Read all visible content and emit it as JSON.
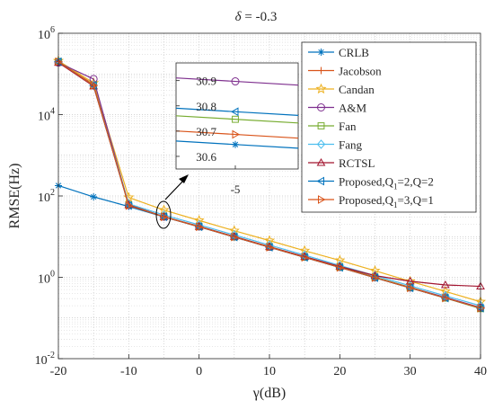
{
  "chart_data": {
    "type": "line",
    "title": "δ = -0.3",
    "xlabel": "γ(dB)",
    "ylabel": "RMSE(Hz)",
    "xlim": [
      -20,
      40
    ],
    "ylim_log10": [
      -2,
      6
    ],
    "y_scale": "log",
    "grid": true,
    "x_ticks": [
      "-20",
      "-10",
      "0",
      "10",
      "20",
      "30",
      "40"
    ],
    "y_ticks": [
      {
        "base": "10",
        "exp": "6"
      },
      {
        "base": "10",
        "exp": "4"
      },
      {
        "base": "10",
        "exp": "2"
      },
      {
        "base": "10",
        "exp": "0"
      },
      {
        "base": "10",
        "exp": "-2"
      }
    ],
    "legend_position": "right",
    "x": [
      -20,
      -15,
      -10,
      -5,
      0,
      5,
      10,
      15,
      20,
      25,
      30,
      35,
      40
    ],
    "series": [
      {
        "name": "CRLB",
        "color": "#0072bd",
        "marker": "asterisk",
        "values": [
          180,
          95,
          55,
          30.65,
          17.5,
          9.8,
          5.5,
          3.1,
          1.75,
          0.98,
          0.55,
          0.31,
          0.175
        ]
      },
      {
        "name": "Jacobson",
        "color": "#d95319",
        "marker": "plus",
        "values": [
          200000,
          55000,
          62,
          30.7,
          18,
          10,
          5.7,
          3.2,
          1.8,
          1.0,
          0.57,
          0.32,
          0.18
        ]
      },
      {
        "name": "Candan",
        "color": "#edb120",
        "marker": "star",
        "values": [
          210000,
          60000,
          92,
          45,
          25,
          14,
          8,
          4.5,
          2.6,
          1.45,
          0.8,
          0.45,
          0.25
        ]
      },
      {
        "name": "A&M",
        "color": "#7e2f8e",
        "marker": "circle",
        "values": [
          190000,
          75000,
          60,
          30.9,
          17.8,
          10,
          5.6,
          3.2,
          1.8,
          1.0,
          0.56,
          0.32,
          0.18
        ]
      },
      {
        "name": "Fan",
        "color": "#77ac30",
        "marker": "square",
        "values": [
          200000,
          52000,
          60,
          30.75,
          17.6,
          9.9,
          5.6,
          3.15,
          1.78,
          1.0,
          0.56,
          0.31,
          0.17
        ]
      },
      {
        "name": "Fang",
        "color": "#4dbeee",
        "marker": "diamond",
        "values": [
          200000,
          52000,
          64,
          34,
          19.5,
          11,
          6.2,
          3.5,
          1.95,
          1.1,
          0.62,
          0.35,
          0.2
        ]
      },
      {
        "name": "RCTSL",
        "color": "#a2142f",
        "marker": "triangle-up",
        "values": [
          190000,
          50000,
          60,
          30.7,
          17.6,
          10,
          5.6,
          3.2,
          1.85,
          1.1,
          0.8,
          0.65,
          0.6
        ]
      },
      {
        "name": "Proposed,Q₁=2,Q=2",
        "color": "#0072bd",
        "marker": "triangle-left",
        "values": [
          200000,
          52000,
          58,
          30.78,
          17.5,
          9.8,
          5.5,
          3.1,
          1.75,
          0.98,
          0.55,
          0.31,
          0.175
        ]
      },
      {
        "name": "Proposed,Q₁=3,Q=1",
        "color": "#d95319",
        "marker": "triangle-right",
        "values": [
          200000,
          52000,
          58,
          30.69,
          17.5,
          9.8,
          5.5,
          3.1,
          1.75,
          0.98,
          0.55,
          0.31,
          0.175
        ]
      }
    ],
    "inset": {
      "x_tick": "-5",
      "y_ticks": [
        "30.9",
        "30.8",
        "30.7",
        "30.6"
      ],
      "ylim": [
        30.55,
        30.97
      ],
      "values_at_minus5": {
        "CRLB": 30.65,
        "A&M": 30.9,
        "Fan": 30.75,
        "Proposed,Q₁=2,Q=2": 30.78,
        "Proposed,Q₁=3,Q=1": 30.69
      }
    }
  }
}
